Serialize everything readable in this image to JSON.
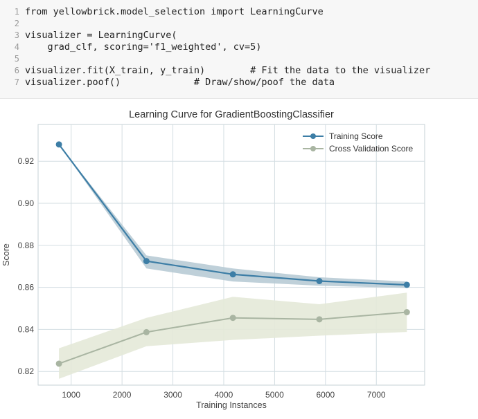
{
  "code_cell": {
    "lines": [
      {
        "num": "1",
        "text": "from yellowbrick.model_selection import LearningCurve"
      },
      {
        "num": "2",
        "text": ""
      },
      {
        "num": "3",
        "text": "visualizer = LearningCurve("
      },
      {
        "num": "4",
        "text": "    grad_clf, scoring='f1_weighted', cv=5)"
      },
      {
        "num": "5",
        "text": ""
      },
      {
        "num": "6",
        "text": "visualizer.fit(X_train, y_train)        # Fit the data to the visualizer"
      },
      {
        "num": "7",
        "text": "visualizer.poof()             # Draw/show/poof the data"
      }
    ]
  },
  "colors": {
    "train": "#3d7ea6",
    "train_band": "#b4c8d2",
    "cv": "#a9b5a2",
    "cv_band": "#e4e9d8",
    "grid": "#d3dde2",
    "axis": "#c6d1d6"
  },
  "chart_data": {
    "type": "line",
    "title": "Learning Curve for GradientBoostingClassifier",
    "xlabel": "Training Instances",
    "ylabel": "Score",
    "xlim": [
      350,
      7950
    ],
    "ylim": [
      0.8135,
      0.9375
    ],
    "xticks": [
      1000,
      2000,
      3000,
      4000,
      5000,
      6000,
      7000
    ],
    "yticks": [
      0.82,
      0.84,
      0.86,
      0.88,
      0.9,
      0.92
    ],
    "ytick_labels": [
      "0.82",
      "0.84",
      "0.86",
      "0.88",
      "0.90",
      "0.92"
    ],
    "xtick_labels": [
      "1000",
      "2000",
      "3000",
      "4000",
      "5000",
      "6000",
      "7000"
    ],
    "legend_position": "top-right",
    "series": [
      {
        "name": "Training Score",
        "x": [
          760,
          2480,
          4180,
          5880,
          7600
        ],
        "y": [
          0.928,
          0.8725,
          0.8662,
          0.863,
          0.8612
        ],
        "band_low": [
          0.928,
          0.869,
          0.8628,
          0.8608,
          0.8597
        ],
        "band_high": [
          0.928,
          0.8752,
          0.869,
          0.8648,
          0.8628
        ]
      },
      {
        "name": "Cross Validation Score",
        "x": [
          760,
          2480,
          4180,
          5880,
          7600
        ],
        "y": [
          0.8237,
          0.8387,
          0.8455,
          0.8448,
          0.8482
        ],
        "band_low": [
          0.8165,
          0.832,
          0.835,
          0.837,
          0.8388
        ],
        "band_high": [
          0.831,
          0.8455,
          0.8555,
          0.852,
          0.8575
        ]
      }
    ]
  }
}
